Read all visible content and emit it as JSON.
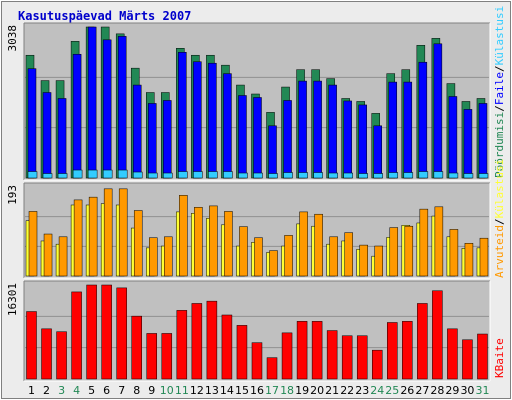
{
  "page": {
    "title": "Kasutuspäevad Märts 2007"
  },
  "colors": {
    "plot_bg": "#c0c0c0",
    "grid": "#909090",
    "frame_bg": "#ececec",
    "title": "#0000cc",
    "visits": "#228855",
    "pages": "#0000ff",
    "files": "#2a3fd0",
    "hits": "#33ccff",
    "kbytes": "#ff0000",
    "sites": "#ffff33",
    "visitors": "#ff9900",
    "weekday_label": "#000000",
    "weekend_label": "#228855"
  },
  "legend_top": [
    {
      "text": "Pöördumisi",
      "color": "#228855"
    },
    {
      "text": "/",
      "color": "#000000"
    },
    {
      "text": "Faile",
      "color": "#0000ff"
    },
    {
      "text": "/",
      "color": "#000000"
    },
    {
      "text": "Külastusi",
      "color": "#33ccff"
    }
  ],
  "legend_mid": [
    {
      "text": "Arvuteid",
      "color": "#ff9900"
    },
    {
      "text": "/",
      "color": "#000000"
    },
    {
      "text": "Külastusi",
      "color": "#ffff33"
    }
  ],
  "legend_bottom": [
    {
      "text": "KBaite",
      "color": "#ff0000"
    }
  ],
  "chart_data": {
    "type": "bar",
    "title": "Kasutuspäevad Märts 2007",
    "categories": [
      "1",
      "2",
      "3",
      "4",
      "5",
      "6",
      "7",
      "8",
      "9",
      "10",
      "11",
      "12",
      "13",
      "14",
      "15",
      "16",
      "17",
      "18",
      "19",
      "20",
      "21",
      "22",
      "23",
      "24",
      "25",
      "26",
      "27",
      "28",
      "29",
      "30",
      "31"
    ],
    "weekend_days": [
      "3",
      "4",
      "10",
      "11",
      "17",
      "18",
      "24",
      "25",
      "31"
    ],
    "panels": [
      {
        "id": "top",
        "max_label": "3038",
        "ylim": [
          0,
          3038
        ],
        "series": [
          {
            "name": "Pöördumisi",
            "color": "#228855",
            "values": [
              2470,
              1960,
              1960,
              2750,
              3038,
              3038,
              2900,
              2210,
              1720,
              1720,
              2610,
              2470,
              2470,
              2270,
              1870,
              1690,
              1320,
              1830,
              2180,
              2180,
              2000,
              1600,
              1540,
              1300,
              2100,
              2180,
              2670,
              2810,
              1900,
              1540,
              1600
            ]
          },
          {
            "name": "Faile",
            "color": "#0000ff",
            "values": [
              2200,
              1720,
              1600,
              2490,
              3038,
              2780,
              2850,
              1870,
              1500,
              1560,
              2530,
              2340,
              2310,
              2100,
              1660,
              1620,
              1050,
              1560,
              1950,
              1950,
              1870,
              1550,
              1470,
              1050,
              1930,
              1930,
              2330,
              2700,
              1640,
              1380,
              1500
            ]
          },
          {
            "name": "Külastusi",
            "color": "#33ccff",
            "values": [
              130,
              90,
              90,
              160,
              160,
              160,
              160,
              120,
              100,
              100,
              130,
              130,
              130,
              130,
              100,
              100,
              90,
              110,
              110,
              110,
              100,
              100,
              90,
              90,
              110,
              110,
              130,
              130,
              100,
              90,
              90
            ]
          }
        ]
      },
      {
        "id": "middle",
        "max_label": "193",
        "ylim": [
          0,
          193
        ],
        "series": [
          {
            "name": "Külastusi",
            "color": "#ffff33",
            "values": [
              120,
              76,
              69,
              154,
              154,
              157,
              154,
              104,
              61,
              65,
              139,
              136,
              125,
              111,
              65,
              73,
              51,
              65,
              113,
              108,
              69,
              76,
              58,
              43,
              84,
              110,
              115,
              130,
              85,
              60,
              61
            ]
          },
          {
            "name": "Arvuteid",
            "color": "#ff9900",
            "values": [
              140,
              91,
              85,
              165,
              171,
              189,
              189,
              142,
              83,
              85,
              175,
              149,
              152,
              140,
              107,
              83,
              55,
              88,
              139,
              134,
              85,
              94,
              67,
              65,
              105,
              108,
              145,
              150,
              101,
              71,
              82
            ]
          }
        ]
      },
      {
        "id": "bottom",
        "max_label": "16301",
        "ylim": [
          0,
          16301
        ],
        "series": [
          {
            "name": "KBaite",
            "color": "#ff0000",
            "values": [
              11700,
              8700,
              8200,
              15100,
              16300,
              16300,
              15800,
              10900,
              7900,
              7900,
              11900,
              13100,
              13500,
              11100,
              9300,
              6300,
              3700,
              8000,
              10000,
              10000,
              8400,
              7500,
              7500,
              5000,
              9800,
              10000,
              13100,
              15300,
              8700,
              6800,
              7800
            ]
          }
        ]
      }
    ]
  }
}
